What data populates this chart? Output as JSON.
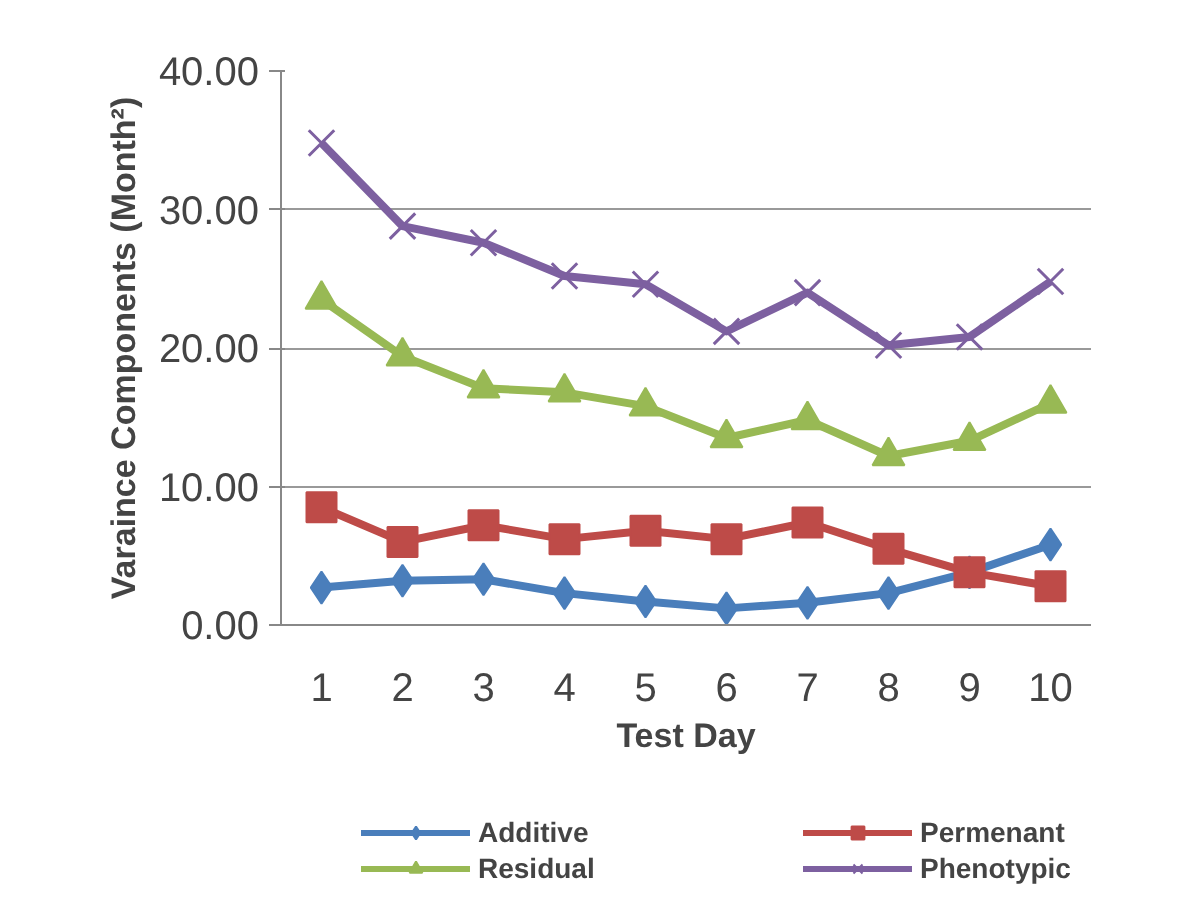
{
  "chart_data": {
    "type": "line",
    "xlabel": "Test Day",
    "ylabel": "Varaince Components (Month²)",
    "categories": [
      "1",
      "2",
      "3",
      "4",
      "5",
      "6",
      "7",
      "8",
      "9",
      "10"
    ],
    "series": [
      {
        "name": "Additive",
        "color": "#4a7ebb",
        "marker": "diamond",
        "values": [
          2.7,
          3.2,
          3.3,
          2.3,
          1.7,
          1.2,
          1.6,
          2.3,
          3.8,
          5.8
        ]
      },
      {
        "name": "Permenant",
        "color": "#be4b48",
        "marker": "square",
        "values": [
          8.5,
          6.0,
          7.2,
          6.2,
          6.8,
          6.2,
          7.4,
          5.5,
          3.8,
          2.8
        ]
      },
      {
        "name": "Residual",
        "color": "#98b954",
        "marker": "triangle",
        "values": [
          23.5,
          19.4,
          17.1,
          16.8,
          15.8,
          13.5,
          14.8,
          12.2,
          13.3,
          16.0
        ]
      },
      {
        "name": "Phenotypic",
        "color": "#7d60a0",
        "marker": "cross",
        "values": [
          34.8,
          28.8,
          27.6,
          25.2,
          24.6,
          21.2,
          24.0,
          20.2,
          20.8,
          24.8
        ]
      }
    ],
    "ylim": [
      0,
      40
    ],
    "yticks": [
      {
        "value": 0,
        "label": "0.00"
      },
      {
        "value": 10,
        "label": "10.00"
      },
      {
        "value": 20,
        "label": "20.00"
      },
      {
        "value": 30,
        "label": "30.00"
      },
      {
        "value": 40,
        "label": "40.00"
      }
    ],
    "grid": "y",
    "legend": "bottom"
  }
}
